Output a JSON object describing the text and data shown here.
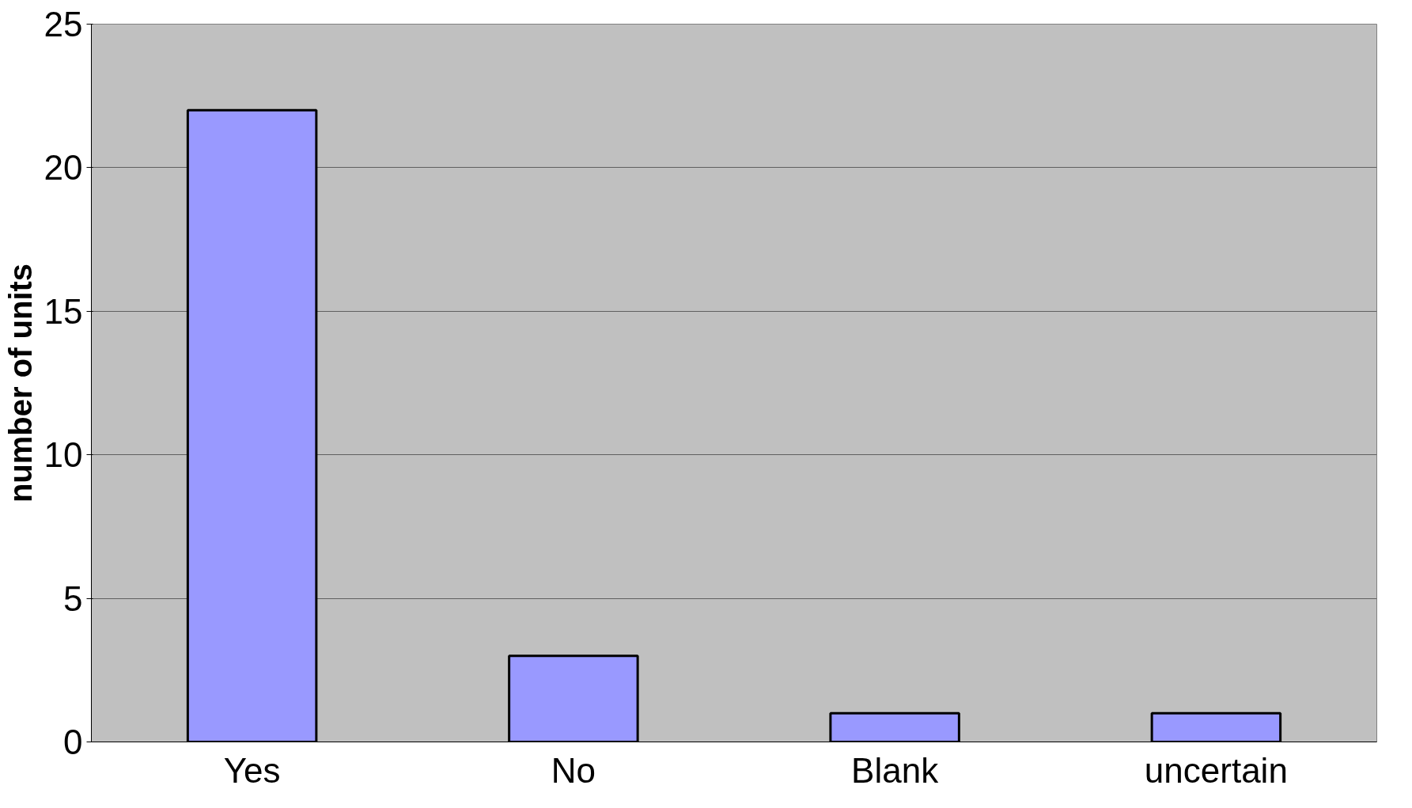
{
  "chart_data": {
    "type": "bar",
    "ylabel": "number of units",
    "categories": [
      "Yes",
      "No",
      "Blank",
      "uncertain"
    ],
    "values": [
      22,
      3,
      1,
      1
    ],
    "color": "#9999ff",
    "ylim": [
      0,
      25
    ],
    "yticks": [
      0,
      5,
      10,
      15,
      20,
      25
    ],
    "grid": "y"
  }
}
